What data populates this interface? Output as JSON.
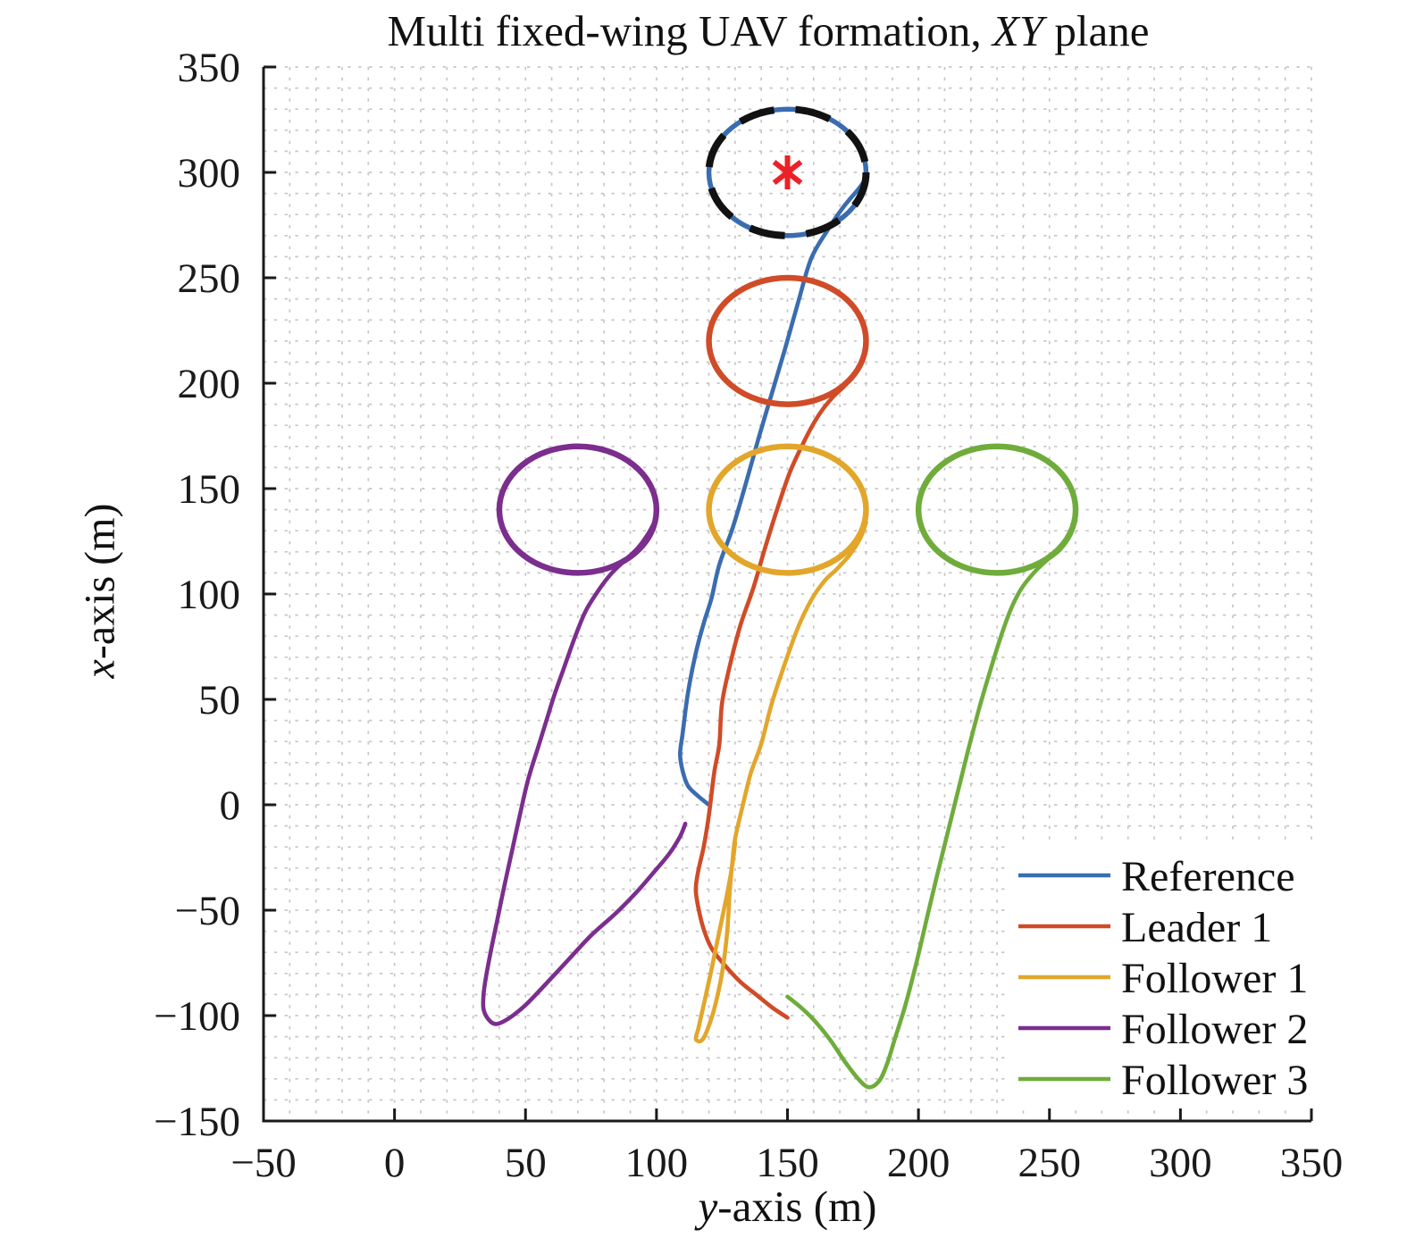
{
  "chart_data": {
    "type": "line",
    "title": {
      "prefix": "Multi fixed-wing UAV formation, ",
      "italic": "XY",
      "suffix": " plane"
    },
    "xlabel": {
      "italic": "y",
      "rest": "-axis (m)"
    },
    "ylabel": {
      "italic": "x",
      "rest": "-axis (m)"
    },
    "xlim": [
      -50,
      350
    ],
    "ylim": [
      -150,
      350
    ],
    "xticks": [
      -50,
      0,
      50,
      100,
      150,
      200,
      250,
      300,
      350
    ],
    "yticks": [
      -150,
      -100,
      -50,
      0,
      50,
      100,
      150,
      200,
      250,
      300,
      350
    ],
    "grid": {
      "style": "dotted",
      "minor_step": 10,
      "color": "#c7c7c7"
    },
    "axis_color": "#1a1a1a",
    "legend": {
      "position": "lower right"
    },
    "point_format": "[y_m, x_m]",
    "series": [
      {
        "name": "Reference",
        "color": "#3a6cb0",
        "line_width": 4.6,
        "loiter": {
          "center": [
            150,
            300
          ],
          "r": 30,
          "width": 5.5
        },
        "path": [
          [
            120,
            0
          ],
          [
            116,
            4
          ],
          [
            112,
            9
          ],
          [
            110,
            16
          ],
          [
            109,
            24
          ],
          [
            110,
            34
          ],
          [
            112,
            53
          ],
          [
            115,
            72
          ],
          [
            118,
            86
          ],
          [
            121,
            98
          ],
          [
            124,
            114
          ],
          [
            129,
            131
          ],
          [
            134,
            152
          ],
          [
            139,
            174
          ],
          [
            144,
            195
          ],
          [
            149,
            216
          ],
          [
            154,
            238
          ],
          [
            159,
            259
          ],
          [
            165,
            272
          ],
          [
            171,
            283
          ],
          [
            177,
            292
          ],
          [
            180,
            297
          ]
        ]
      },
      {
        "name": "Leader 1",
        "color": "#d04b27",
        "line_width": 4.6,
        "loiter": {
          "center": [
            150,
            220
          ],
          "r": 30,
          "width": 6.5
        },
        "path": [
          [
            150,
            -101
          ],
          [
            144,
            -96
          ],
          [
            138,
            -90
          ],
          [
            132,
            -84
          ],
          [
            126,
            -76
          ],
          [
            121,
            -68
          ],
          [
            118,
            -59
          ],
          [
            116,
            -49
          ],
          [
            115,
            -40
          ],
          [
            116,
            -31
          ],
          [
            118,
            -20
          ],
          [
            120,
            -5
          ],
          [
            122,
            15
          ],
          [
            124,
            29
          ],
          [
            125,
            48
          ],
          [
            128,
            66
          ],
          [
            132,
            85
          ],
          [
            137,
            103
          ],
          [
            141,
            120
          ],
          [
            146,
            140
          ],
          [
            151,
            158
          ],
          [
            157,
            174
          ],
          [
            162,
            185
          ],
          [
            167,
            193
          ],
          [
            172,
            199
          ],
          [
            176,
            205
          ]
        ]
      },
      {
        "name": "Follower 1",
        "color": "#e2a62b",
        "line_width": 4.6,
        "loiter": {
          "center": [
            150,
            140
          ],
          "r": 30,
          "width": 6.5
        },
        "path": [
          [
            130,
            -18
          ],
          [
            129,
            -28
          ],
          [
            127,
            -42
          ],
          [
            124,
            -60
          ],
          [
            121,
            -78
          ],
          [
            118,
            -95
          ],
          [
            116,
            -106
          ],
          [
            115,
            -111
          ],
          [
            117,
            -112
          ],
          [
            119,
            -108
          ],
          [
            122,
            -97
          ],
          [
            125,
            -80
          ],
          [
            127,
            -60
          ],
          [
            128,
            -40
          ],
          [
            129,
            -27
          ],
          [
            130,
            -16
          ],
          [
            133,
            0
          ],
          [
            136,
            15
          ],
          [
            140,
            29
          ],
          [
            144,
            48
          ],
          [
            149,
            67
          ],
          [
            154,
            84
          ],
          [
            159,
            97
          ],
          [
            164,
            106
          ],
          [
            169,
            112
          ],
          [
            174,
            119
          ],
          [
            178,
            127
          ],
          [
            180,
            134
          ]
        ]
      },
      {
        "name": "Follower 2",
        "color": "#7b2e8d",
        "line_width": 4.6,
        "loiter": {
          "center": [
            70,
            140
          ],
          "r": 30,
          "width": 6.5
        },
        "path": [
          [
            111,
            -9
          ],
          [
            109,
            -15
          ],
          [
            105,
            -23
          ],
          [
            99,
            -32
          ],
          [
            92,
            -42
          ],
          [
            84,
            -52
          ],
          [
            75,
            -62
          ],
          [
            66,
            -74
          ],
          [
            57,
            -86
          ],
          [
            50,
            -95
          ],
          [
            44,
            -101
          ],
          [
            39,
            -104
          ],
          [
            36,
            -102
          ],
          [
            34,
            -97
          ],
          [
            34,
            -90
          ],
          [
            35,
            -81
          ],
          [
            37,
            -68
          ],
          [
            39,
            -56
          ],
          [
            42,
            -38
          ],
          [
            45,
            -21
          ],
          [
            48,
            -4
          ],
          [
            51,
            12
          ],
          [
            55,
            28
          ],
          [
            58,
            40
          ],
          [
            61,
            52
          ],
          [
            65,
            66
          ],
          [
            69,
            80
          ],
          [
            73,
            92
          ],
          [
            78,
            102
          ],
          [
            83,
            110
          ],
          [
            88,
            116
          ],
          [
            93,
            122
          ],
          [
            97,
            129
          ],
          [
            100,
            136
          ]
        ]
      },
      {
        "name": "Follower 3",
        "color": "#6fac3b",
        "line_width": 4.6,
        "loiter": {
          "center": [
            230,
            140
          ],
          "r": 30,
          "width": 6.5
        },
        "path": [
          [
            150,
            -91
          ],
          [
            155,
            -96
          ],
          [
            160,
            -102
          ],
          [
            166,
            -111
          ],
          [
            172,
            -122
          ],
          [
            177,
            -130
          ],
          [
            181,
            -134
          ],
          [
            185,
            -131
          ],
          [
            188,
            -123
          ],
          [
            191,
            -111
          ],
          [
            195,
            -95
          ],
          [
            199,
            -76
          ],
          [
            203,
            -55
          ],
          [
            207,
            -34
          ],
          [
            211,
            -14
          ],
          [
            215,
            6
          ],
          [
            219,
            26
          ],
          [
            223,
            45
          ],
          [
            227,
            62
          ],
          [
            231,
            78
          ],
          [
            235,
            92
          ],
          [
            239,
            102
          ],
          [
            244,
            110
          ],
          [
            249,
            116
          ],
          [
            254,
            121
          ],
          [
            258,
            128
          ],
          [
            260,
            135
          ]
        ]
      }
    ],
    "annotations": {
      "target_star": {
        "at": [
          150,
          300
        ],
        "color": "#ec2127",
        "radius_px": 19,
        "arm_width": 6
      },
      "desired_orbit_dashed": {
        "center": [
          150,
          300
        ],
        "r": 30,
        "color": "#121212",
        "dash": [
          40,
          24
        ],
        "width": 8
      }
    }
  }
}
